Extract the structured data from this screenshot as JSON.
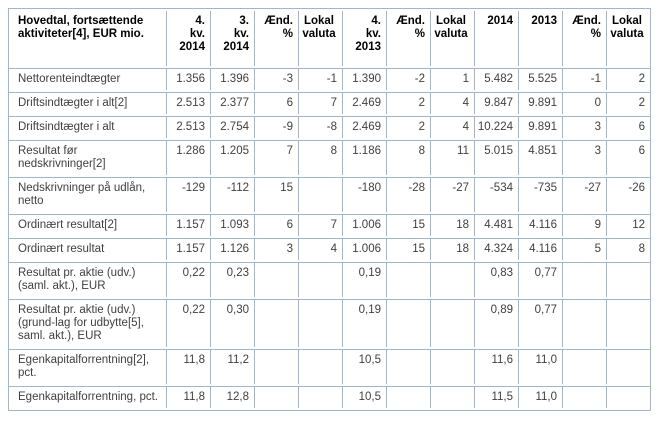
{
  "table": {
    "corner_header": "Hovedtal, fortsættende aktiviteter[4], EUR mio.",
    "column_headers": [
      {
        "label": "4.\nkv.\n2014",
        "align": "right"
      },
      {
        "label": "3.\nkv.\n2014",
        "align": "right"
      },
      {
        "label": "Ænd.\n%",
        "align": "right"
      },
      {
        "label": "Lokal\nvaluta",
        "align": "center"
      },
      {
        "label": "4.\nkv.\n2013",
        "align": "right"
      },
      {
        "label": "Ænd.\n%",
        "align": "right"
      },
      {
        "label": "Lokal\nvaluta",
        "align": "center"
      },
      {
        "label": "2014",
        "align": "right"
      },
      {
        "label": "2013",
        "align": "right"
      },
      {
        "label": "Ænd.\n%",
        "align": "right"
      },
      {
        "label": "Lokal\nvaluta",
        "align": "center"
      }
    ],
    "rows": [
      {
        "label": "Nettorenteindtægter",
        "values": [
          "1.356",
          "1.396",
          "-3",
          "-1",
          "1.390",
          "-2",
          "1",
          "5.482",
          "5.525",
          "-1",
          "2"
        ]
      },
      {
        "label": "Driftsindtægter i alt[2]",
        "values": [
          "2.513",
          "2.377",
          "6",
          "7",
          "2.469",
          "2",
          "4",
          "9.847",
          "9.891",
          "0",
          "2"
        ]
      },
      {
        "label": "Driftsindtægter i alt",
        "values": [
          "2.513",
          "2.754",
          "-9",
          "-8",
          "2.469",
          "2",
          "4",
          "10.224",
          "9.891",
          "3",
          "6"
        ]
      },
      {
        "label": "Resultat før nedskrivninger[2]",
        "values": [
          "1.286",
          "1.205",
          "7",
          "8",
          "1.186",
          "8",
          "11",
          "5.015",
          "4.851",
          "3",
          "6"
        ]
      },
      {
        "label": "Nedskrivninger på udlån, netto",
        "values": [
          "-129",
          "-112",
          "15",
          "",
          "-180",
          "-28",
          "-27",
          "-534",
          "-735",
          "-27",
          "-26"
        ]
      },
      {
        "label": "Ordinært resultat[2]",
        "values": [
          "1.157",
          "1.093",
          "6",
          "7",
          "1.006",
          "15",
          "18",
          "4.481",
          "4.116",
          "9",
          "12"
        ]
      },
      {
        "label": "Ordinært resultat",
        "values": [
          "1.157",
          "1.126",
          "3",
          "4",
          "1.006",
          "15",
          "18",
          "4.324",
          "4.116",
          "5",
          "8"
        ]
      },
      {
        "label": "Resultat pr. aktie (udv.) (saml. akt.), EUR",
        "values": [
          "0,22",
          "0,23",
          "",
          "",
          "0,19",
          "",
          "",
          "0,83",
          "0,77",
          "",
          ""
        ]
      },
      {
        "label": "Resultat pr. aktie (udv.) (grund-lag for udbytte[5], saml. akt.), EUR",
        "values": [
          "0,22",
          "0,30",
          "",
          "",
          "0,19",
          "",
          "",
          "0,89",
          "0,77",
          "",
          ""
        ]
      },
      {
        "label": "Egenkapitalforrentning[2], pct.",
        "values": [
          "11,8",
          "11,2",
          "",
          "",
          "10,5",
          "",
          "",
          "11,6",
          "11,0",
          "",
          ""
        ]
      },
      {
        "label": "Egenkapitalforrentning, pct.",
        "values": [
          "11,8",
          "12,8",
          "",
          "",
          "10,5",
          "",
          "",
          "11,5",
          "11,0",
          "",
          ""
        ]
      }
    ],
    "layout": {
      "label_col_width": 157,
      "value_col_width": 44
    },
    "colors": {
      "border": "#9eb6ce",
      "header_text": "#000000",
      "body_text": "#404040",
      "background": "#ffffff"
    }
  }
}
